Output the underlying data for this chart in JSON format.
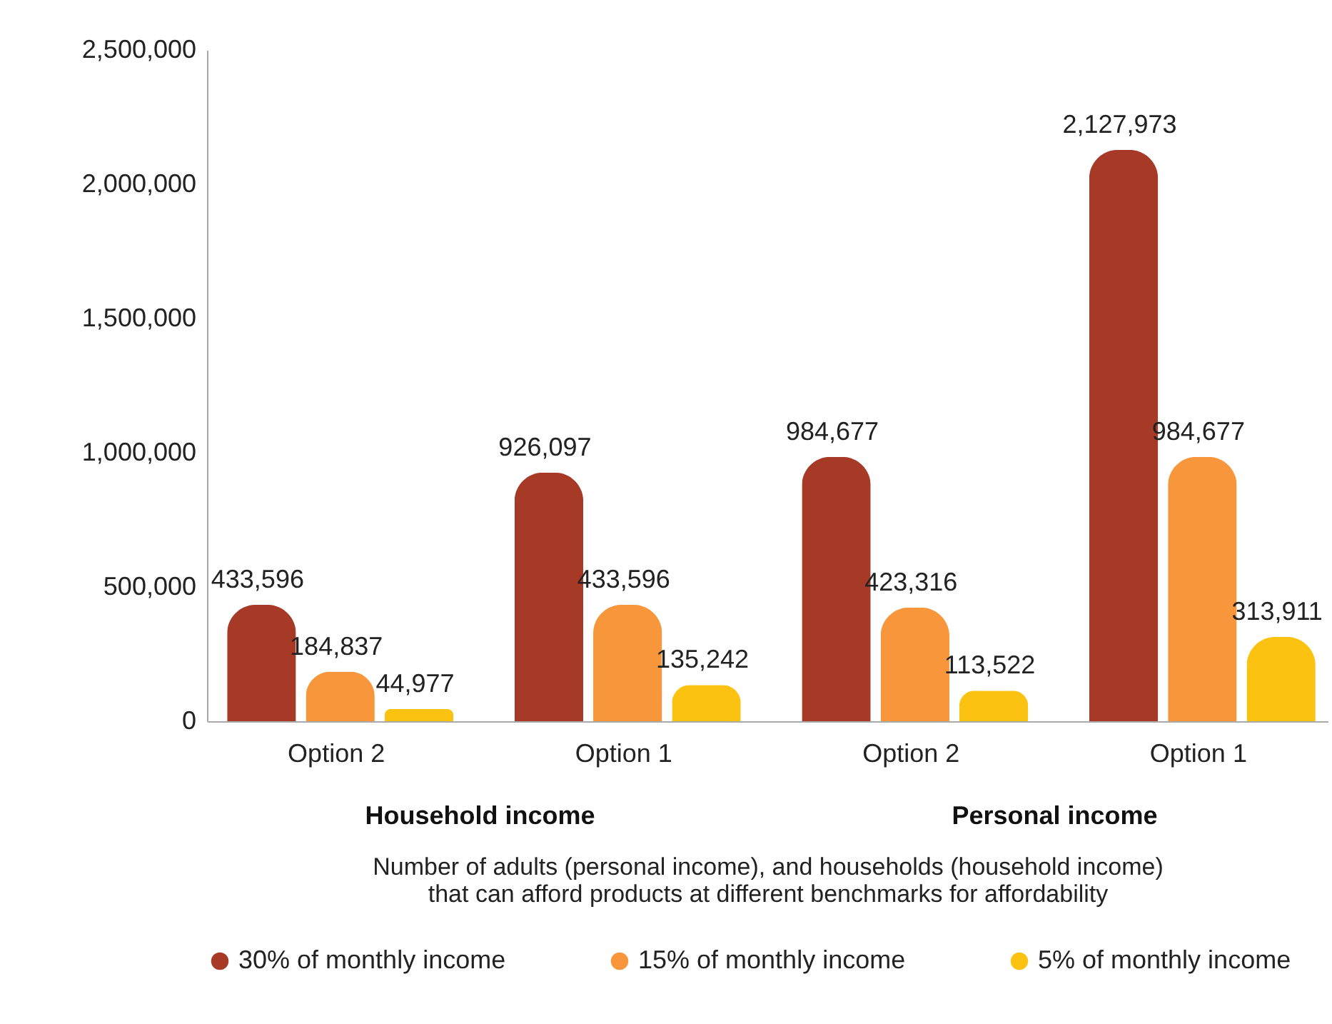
{
  "chart_data": {
    "type": "bar",
    "categories": [
      "Option 2",
      "Option 1",
      "Option 2",
      "Option 1"
    ],
    "series": [
      {
        "name": "30% of monthly income",
        "color": "#a63a27",
        "values": [
          433596,
          926097,
          984677,
          2127973
        ],
        "value_labels": [
          "433,596",
          "926,097",
          "984,677",
          "2,127,973"
        ]
      },
      {
        "name": "15% of monthly income",
        "color": "#f7963a",
        "values": [
          184837,
          433596,
          423316,
          984677
        ],
        "value_labels": [
          "184,837",
          "433,596",
          "423,316",
          "984,677"
        ]
      },
      {
        "name": "5% of monthly income",
        "color": "#fcc212",
        "values": [
          44977,
          135242,
          113522,
          313911
        ],
        "value_labels": [
          "44,977",
          "135,242",
          "113,522",
          "313,911"
        ]
      }
    ],
    "xlabel": "Number of adults (personal income), and households (household income) that can afford products at different benchmarks for affordability",
    "annotations": [
      "Household income",
      "Personal income"
    ],
    "ylim": [
      0,
      2500000
    ],
    "yticks": [
      0,
      {
        "value": 500000,
        "label": "500,000"
      },
      {
        "value": 1000000,
        "label": "1,000,000"
      },
      {
        "value": 1500000,
        "label": "1,500,000"
      },
      {
        "value": 2000000,
        "label": "2,000,000"
      },
      {
        "value": 2500000,
        "label": "2,500,000"
      }
    ],
    "grid": false,
    "legend": "bottom left"
  }
}
